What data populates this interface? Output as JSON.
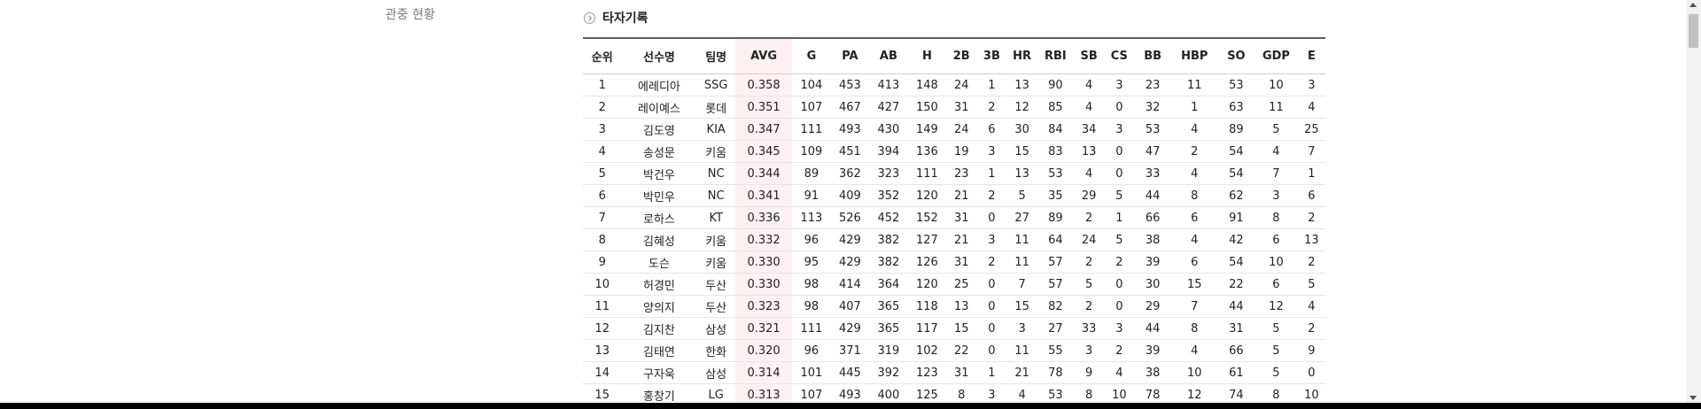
{
  "sidebar": {
    "link_label": "관중 현황"
  },
  "section": {
    "title": "타자기록"
  },
  "table": {
    "columns": [
      "순위",
      "선수명",
      "팀명",
      "AVG",
      "G",
      "PA",
      "AB",
      "H",
      "2B",
      "3B",
      "HR",
      "RBI",
      "SB",
      "CS",
      "BB",
      "HBP",
      "SO",
      "GDP",
      "E"
    ],
    "rows": [
      [
        "1",
        "에레디아",
        "SSG",
        "0.358",
        "104",
        "453",
        "413",
        "148",
        "24",
        "1",
        "13",
        "90",
        "4",
        "3",
        "23",
        "11",
        "53",
        "10",
        "3"
      ],
      [
        "2",
        "레이예스",
        "롯데",
        "0.351",
        "107",
        "467",
        "427",
        "150",
        "31",
        "2",
        "12",
        "85",
        "4",
        "0",
        "32",
        "1",
        "63",
        "11",
        "4"
      ],
      [
        "3",
        "김도영",
        "KIA",
        "0.347",
        "111",
        "493",
        "430",
        "149",
        "24",
        "6",
        "30",
        "84",
        "34",
        "3",
        "53",
        "4",
        "89",
        "5",
        "25"
      ],
      [
        "4",
        "송성문",
        "키움",
        "0.345",
        "109",
        "451",
        "394",
        "136",
        "19",
        "3",
        "15",
        "83",
        "13",
        "0",
        "47",
        "2",
        "54",
        "4",
        "7"
      ],
      [
        "5",
        "박건우",
        "NC",
        "0.344",
        "89",
        "362",
        "323",
        "111",
        "23",
        "1",
        "13",
        "53",
        "4",
        "0",
        "33",
        "4",
        "54",
        "7",
        "1"
      ],
      [
        "6",
        "박민우",
        "NC",
        "0.341",
        "91",
        "409",
        "352",
        "120",
        "21",
        "2",
        "5",
        "35",
        "29",
        "5",
        "44",
        "8",
        "62",
        "3",
        "6"
      ],
      [
        "7",
        "로하스",
        "KT",
        "0.336",
        "113",
        "526",
        "452",
        "152",
        "31",
        "0",
        "27",
        "89",
        "2",
        "1",
        "66",
        "6",
        "91",
        "8",
        "2"
      ],
      [
        "8",
        "김혜성",
        "키움",
        "0.332",
        "96",
        "429",
        "382",
        "127",
        "21",
        "3",
        "11",
        "64",
        "24",
        "5",
        "38",
        "4",
        "42",
        "6",
        "13"
      ],
      [
        "9",
        "도슨",
        "키움",
        "0.330",
        "95",
        "429",
        "382",
        "126",
        "31",
        "2",
        "11",
        "57",
        "2",
        "2",
        "39",
        "6",
        "54",
        "10",
        "2"
      ],
      [
        "10",
        "허경민",
        "두산",
        "0.330",
        "98",
        "414",
        "364",
        "120",
        "25",
        "0",
        "7",
        "57",
        "5",
        "0",
        "30",
        "15",
        "22",
        "6",
        "5"
      ],
      [
        "11",
        "양의지",
        "두산",
        "0.323",
        "98",
        "407",
        "365",
        "118",
        "13",
        "0",
        "15",
        "82",
        "2",
        "0",
        "29",
        "7",
        "44",
        "12",
        "4"
      ],
      [
        "12",
        "김지찬",
        "삼성",
        "0.321",
        "111",
        "429",
        "365",
        "117",
        "15",
        "0",
        "3",
        "27",
        "33",
        "3",
        "44",
        "8",
        "31",
        "5",
        "2"
      ],
      [
        "13",
        "김태연",
        "한화",
        "0.320",
        "96",
        "371",
        "319",
        "102",
        "22",
        "0",
        "11",
        "55",
        "3",
        "2",
        "39",
        "4",
        "66",
        "5",
        "9"
      ],
      [
        "14",
        "구자욱",
        "삼성",
        "0.314",
        "101",
        "445",
        "392",
        "123",
        "31",
        "1",
        "21",
        "78",
        "9",
        "4",
        "38",
        "10",
        "61",
        "5",
        "0"
      ],
      [
        "15",
        "홍창기",
        "LG",
        "0.313",
        "107",
        "493",
        "400",
        "125",
        "8",
        "3",
        "4",
        "53",
        "8",
        "10",
        "78",
        "12",
        "74",
        "8",
        "10"
      ]
    ]
  },
  "colors": {
    "highlight": "#fff1f1",
    "header_rule": "#5c5c5c"
  },
  "icons": {
    "section_marker": "chevron-right-circle-icon"
  }
}
